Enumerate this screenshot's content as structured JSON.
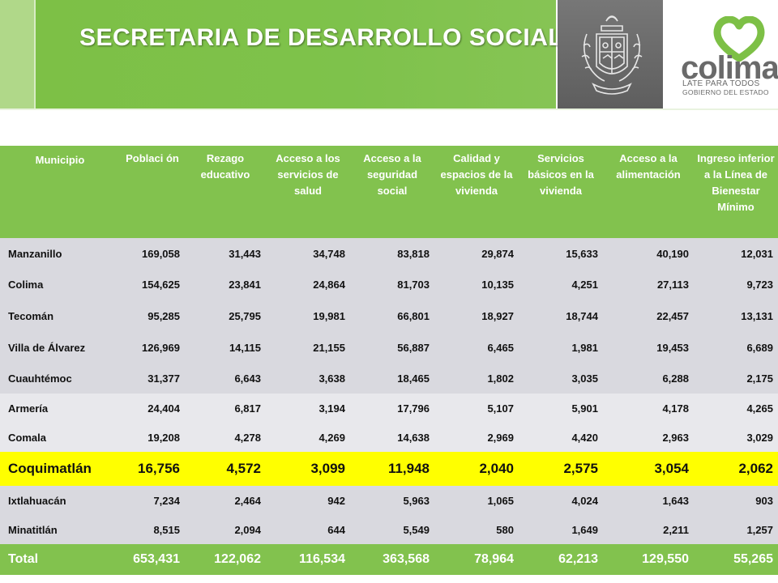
{
  "header": {
    "title": "SECRETARIA DE DESARROLLO SOCIAL",
    "logo": {
      "word": "colima",
      "tagline": "LATE PARA TODOS",
      "subtag": "GOBIERNO DEL ESTADO",
      "heart_color": "#7dc046"
    },
    "crest_icon": "state-coat-of-arms-icon"
  },
  "colors": {
    "accent_green": "#82c24e",
    "highlight_yellow": "#ffff00",
    "header_gray": "#6b6b6b"
  },
  "table": {
    "columns": [
      "Municipio",
      "Poblaci ón",
      "Rezago educativo",
      "Acceso a los servicios de salud",
      "Acceso a la seguridad social",
      "Calidad y espacios de la vivienda",
      "Servicios básicos en la vivienda",
      "Acceso a la alimentación",
      "Ingreso inferior a la Línea de Bienestar Mínimo"
    ],
    "rows": [
      [
        "Manzanillo",
        "169,058",
        "31,443",
        "34,748",
        "83,818",
        "29,874",
        "15,633",
        "40,190",
        "12,031"
      ],
      [
        "Colima",
        "154,625",
        "23,841",
        "24,864",
        "81,703",
        "10,135",
        "4,251",
        "27,113",
        "9,723"
      ],
      [
        "Tecomán",
        "95,285",
        "25,795",
        "19,981",
        "66,801",
        "18,927",
        "18,744",
        "22,457",
        "13,131"
      ],
      [
        "Villa de Álvarez",
        "126,969",
        "14,115",
        "21,155",
        "56,887",
        "6,465",
        "1,981",
        "19,453",
        "6,689"
      ],
      [
        "Cuauhtémoc",
        "31,377",
        "6,643",
        "3,638",
        "18,465",
        "1,802",
        "3,035",
        "6,288",
        "2,175"
      ],
      [
        "Armería",
        "24,404",
        "6,817",
        "3,194",
        "17,796",
        "5,107",
        "5,901",
        "4,178",
        "4,265"
      ],
      [
        "Comala",
        "19,208",
        "4,278",
        "4,269",
        "14,638",
        "2,969",
        "4,420",
        "2,963",
        "3,029"
      ],
      [
        "Coquimatlán",
        "16,756",
        "4,572",
        "3,099",
        "11,948",
        "2,040",
        "2,575",
        "3,054",
        "2,062"
      ],
      [
        "Ixtlahuacán",
        "7,234",
        "2,464",
        "942",
        "5,963",
        "1,065",
        "4,024",
        "1,643",
        "903"
      ],
      [
        "Minatitlán",
        "8,515",
        "2,094",
        "644",
        "5,549",
        "580",
        "1,649",
        "2,211",
        "1,257"
      ]
    ],
    "highlighted_row": "Coquimatlán",
    "total": [
      "Total",
      "653,431",
      "122,062",
      "116,534",
      "363,568",
      "78,964",
      "62,213",
      "129,550",
      "55,265"
    ]
  }
}
